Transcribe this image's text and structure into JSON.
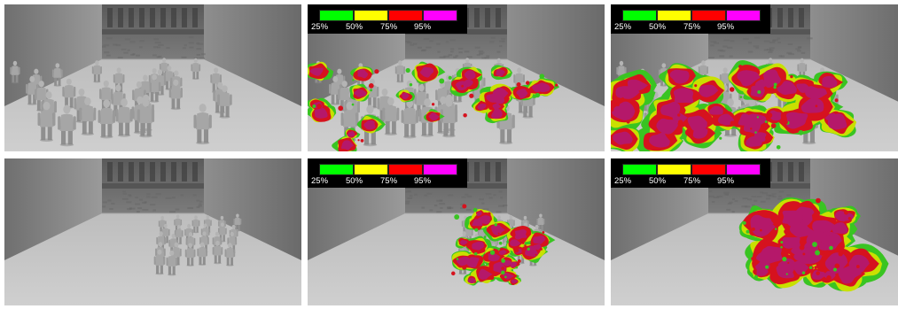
{
  "figure": {
    "panels": [
      {
        "scene": "crowd-scattered",
        "overlay": "none"
      },
      {
        "scene": "crowd-scattered",
        "overlay": "heatmap-sparse"
      },
      {
        "scene": "crowd-scattered",
        "overlay": "heatmap-dense"
      },
      {
        "scene": "crowd-clustered",
        "overlay": "none"
      },
      {
        "scene": "crowd-clustered",
        "overlay": "heatmap-sparse"
      },
      {
        "scene": "crowd-clustered",
        "overlay": "heatmap-dense"
      }
    ]
  },
  "legend": {
    "swatches": [
      {
        "label": "25%",
        "color": "#00ff00"
      },
      {
        "label": "50%",
        "color": "#ffff00"
      },
      {
        "label": "75%",
        "color": "#ff0000"
      },
      {
        "label": "95%",
        "color": "#ff00ff"
      }
    ]
  },
  "heat_colors": {
    "outer": "#39c422",
    "mid": "#c9e000",
    "inner": "#d6121e",
    "core": "#b5186a"
  }
}
